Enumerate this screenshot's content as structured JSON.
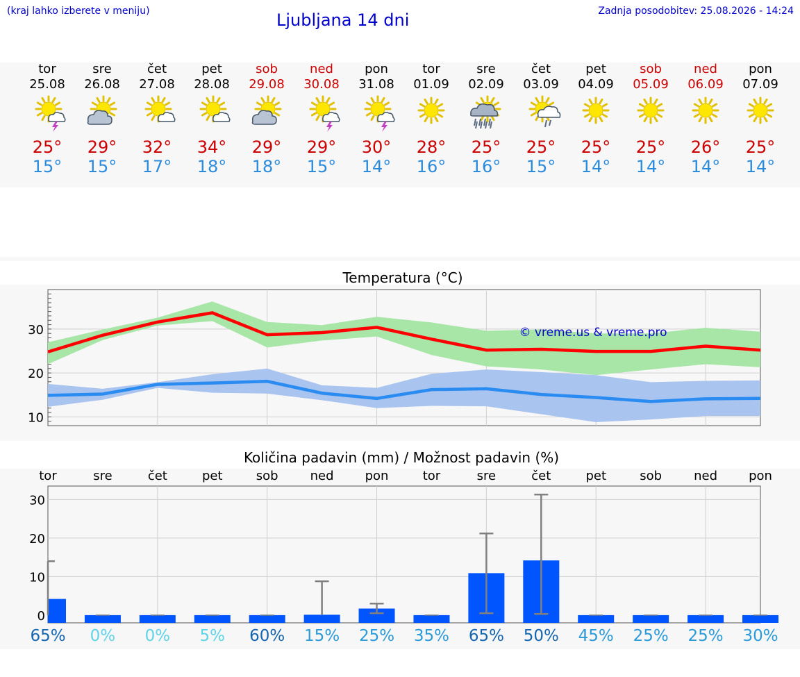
{
  "header": {
    "hint": "(kraj lahko izberete v meniju)",
    "title": "Ljubljana 14 dni",
    "updated": "Zadnja posodobitev: 25.08.2026 - 14:24"
  },
  "days": [
    {
      "name": "tor",
      "date": "25.08",
      "weekend": false,
      "icon": "sun-thunderstorm-icon",
      "max": "25°",
      "min": "15°"
    },
    {
      "name": "sre",
      "date": "26.08",
      "weekend": false,
      "icon": "sun-cloud-icon",
      "max": "29°",
      "min": "15°"
    },
    {
      "name": "čet",
      "date": "27.08",
      "weekend": false,
      "icon": "sun-small-cloud-icon",
      "max": "32°",
      "min": "17°"
    },
    {
      "name": "pet",
      "date": "28.08",
      "weekend": false,
      "icon": "sun-small-cloud-icon",
      "max": "34°",
      "min": "18°"
    },
    {
      "name": "sob",
      "date": "29.08",
      "weekend": true,
      "icon": "sun-cloud-icon",
      "max": "29°",
      "min": "18°"
    },
    {
      "name": "ned",
      "date": "30.08",
      "weekend": true,
      "icon": "sun-thunderstorm-icon",
      "max": "29°",
      "min": "15°"
    },
    {
      "name": "pon",
      "date": "31.08",
      "weekend": false,
      "icon": "sun-thunderstorm-icon",
      "max": "30°",
      "min": "14°"
    },
    {
      "name": "tor",
      "date": "01.09",
      "weekend": false,
      "icon": "sun-icon",
      "max": "28°",
      "min": "16°"
    },
    {
      "name": "sre",
      "date": "02.09",
      "weekend": false,
      "icon": "sun-rain-cloud-icon",
      "max": "25°",
      "min": "16°"
    },
    {
      "name": "čet",
      "date": "03.09",
      "weekend": false,
      "icon": "sun-light-rain-icon",
      "max": "25°",
      "min": "15°"
    },
    {
      "name": "pet",
      "date": "04.09",
      "weekend": false,
      "icon": "sun-icon",
      "max": "25°",
      "min": "14°"
    },
    {
      "name": "sob",
      "date": "05.09",
      "weekend": true,
      "icon": "sun-icon",
      "max": "25°",
      "min": "14°"
    },
    {
      "name": "ned",
      "date": "06.09",
      "weekend": true,
      "icon": "sun-icon",
      "max": "26°",
      "min": "14°"
    },
    {
      "name": "pon",
      "date": "07.09",
      "weekend": false,
      "icon": "sun-icon",
      "max": "25°",
      "min": "14°"
    }
  ],
  "colors": {
    "max_temp": "#cc0000",
    "min_temp": "#2a8bdc",
    "max_line": "#ff0000",
    "min_line": "#2a8bf0",
    "max_band": "#a8e6a8",
    "min_band": "#aac4f0",
    "precip_bar": "#0055ff",
    "title": "#0000cc"
  },
  "chart_data": [
    {
      "type": "line",
      "title": "Temperatura (°C)",
      "watermark": "© vreme.us & vreme.pro",
      "x_index": [
        0,
        1,
        2,
        3,
        4,
        5,
        6,
        7,
        8,
        9,
        10,
        11,
        12,
        13
      ],
      "ylim": [
        8,
        39
      ],
      "yticks": [
        10,
        20,
        30
      ],
      "grid": true,
      "series": [
        {
          "values": [
            24.8,
            28.6,
            31.6,
            33.7,
            28.7,
            29.2,
            30.4,
            27.7,
            25.2,
            25.4,
            24.9,
            24.9,
            26.1,
            25.2
          ],
          "band_low": [
            22.0,
            27.5,
            30.8,
            31.8,
            25.8,
            27.4,
            28.3,
            24.1,
            21.5,
            20.8,
            19.5,
            20.8,
            22.0,
            21.3
          ],
          "band_high": [
            27.0,
            29.9,
            32.6,
            36.3,
            31.6,
            30.9,
            32.8,
            31.5,
            29.6,
            29.9,
            29.0,
            29.0,
            30.3,
            29.4
          ]
        },
        {
          "values": [
            14.9,
            15.2,
            17.4,
            17.7,
            18.1,
            15.4,
            14.2,
            16.2,
            16.4,
            15.1,
            14.4,
            13.5,
            14.1,
            14.2
          ],
          "band_low": [
            12.3,
            13.9,
            16.6,
            15.5,
            15.3,
            13.8,
            12.0,
            12.5,
            12.4,
            10.6,
            8.8,
            9.4,
            10.2,
            10.2
          ],
          "band_high": [
            17.5,
            16.4,
            17.9,
            19.7,
            21.0,
            17.2,
            16.6,
            19.8,
            20.8,
            20.2,
            19.5,
            17.9,
            18.2,
            18.3
          ]
        }
      ]
    },
    {
      "type": "bar",
      "title": "Količina padavin (mm) / Možnost padavin (%)",
      "categories": [
        "tor",
        "sre",
        "čet",
        "pet",
        "sob",
        "ned",
        "pon",
        "tor",
        "sre",
        "čet",
        "pet",
        "sob",
        "ned",
        "pon"
      ],
      "ylim": [
        -2,
        33.5
      ],
      "yticks": [
        0,
        10,
        20,
        30
      ],
      "grid": true,
      "values": [
        4.2,
        0,
        0,
        0,
        0,
        0.1,
        1.7,
        0,
        10.9,
        14.2,
        0,
        0,
        0,
        0
      ],
      "error_high": [
        14.0,
        0,
        0,
        0,
        0,
        8.8,
        3.0,
        0,
        21.2,
        31.3,
        0,
        0,
        0,
        0
      ],
      "error_low": [
        0,
        0,
        0,
        0,
        0,
        0,
        0.5,
        0,
        0.5,
        0.3,
        0,
        0,
        0,
        0
      ],
      "chance": [
        {
          "label": "65%",
          "color": "#1565b0"
        },
        {
          "label": "0%",
          "color": "#5fd3e8"
        },
        {
          "label": "0%",
          "color": "#5fd3e8"
        },
        {
          "label": "5%",
          "color": "#5fd3e8"
        },
        {
          "label": "60%",
          "color": "#1565b0"
        },
        {
          "label": "15%",
          "color": "#2a9ad8"
        },
        {
          "label": "25%",
          "color": "#2a9ad8"
        },
        {
          "label": "35%",
          "color": "#2a9ad8"
        },
        {
          "label": "65%",
          "color": "#1565b0"
        },
        {
          "label": "50%",
          "color": "#1565b0"
        },
        {
          "label": "45%",
          "color": "#2a9ad8"
        },
        {
          "label": "25%",
          "color": "#2a9ad8"
        },
        {
          "label": "25%",
          "color": "#2a9ad8"
        },
        {
          "label": "30%",
          "color": "#2a9ad8"
        }
      ]
    }
  ]
}
